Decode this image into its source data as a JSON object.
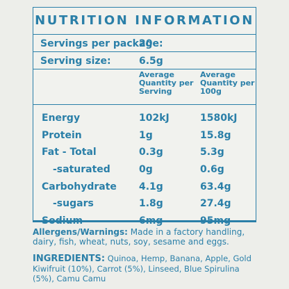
{
  "panel": {
    "title": "NUTRITION INFORMATION",
    "servings_label": "Servings per package:",
    "servings_value": "20",
    "serving_size_label": "Serving size:",
    "serving_size_value": "6.5g",
    "col1_header": "Average Quantity per Serving",
    "col2_header": "Average Quantity per 100g"
  },
  "rows": [
    {
      "name": "Energy",
      "serving": "102kJ",
      "per100": "1580kJ"
    },
    {
      "name": "Protein",
      "serving": "1g",
      "per100": "15.8g"
    },
    {
      "name": "Fat - Total",
      "serving": "0.3g",
      "per100": "5.3g"
    },
    {
      "name": "-saturated",
      "serving": "0g",
      "per100": "0.6g"
    },
    {
      "name": "Carbohydrate",
      "serving": "4.1g",
      "per100": "63.4g"
    },
    {
      "name": "-sugars",
      "serving": "1.8g",
      "per100": "27.4g"
    },
    {
      "name": "Sodium",
      "serving": "6mg",
      "per100": "95mg"
    }
  ],
  "allergens": {
    "label": "Allergens/Warnings:",
    "text": "Made in a factory handling, dairy, fish, wheat, nuts, soy, sesame and eggs."
  },
  "ingredients": {
    "label": "INGREDIENTS:",
    "text": "Quinoa, Hemp, Banana, Apple, Gold Kiwifruit (10%), Carrot (5%), Linseed, Blue Spirulina (5%), Camu Camu"
  },
  "colors": {
    "accent": "#2a7fa8",
    "background": "#edeeea"
  }
}
